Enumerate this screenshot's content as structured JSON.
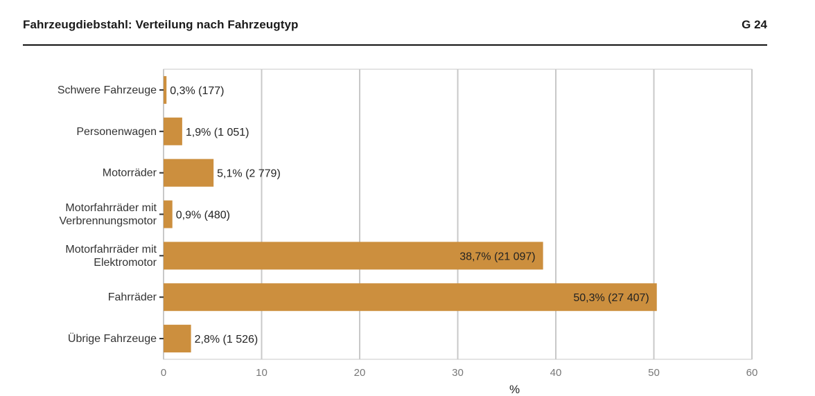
{
  "header": {
    "title": "Fahrzeugdiebstahl: Verteilung nach Fahrzeugtyp",
    "figure_number": "G 24"
  },
  "colors": {
    "bar": "#cc8f3e",
    "grid": "#c8c8c8"
  },
  "chart_data": {
    "type": "bar",
    "orientation": "horizontal",
    "title": "Fahrzeugdiebstahl: Verteilung nach Fahrzeugtyp",
    "xlabel": "%",
    "ylabel": "",
    "xlim": [
      0,
      60
    ],
    "xticks": [
      0,
      10,
      20,
      30,
      40,
      50,
      60
    ],
    "grid": true,
    "categories": [
      [
        "Schwere Fahrzeuge"
      ],
      [
        "Personenwagen"
      ],
      [
        "Motorräder"
      ],
      [
        "Motorfahrräder mit",
        "Verbrennungsmotor"
      ],
      [
        "Motorfahrräder mit",
        "Elektromotor"
      ],
      [
        "Fahrräder"
      ],
      [
        "Übrige Fahrzeuge"
      ]
    ],
    "values": [
      0.3,
      1.9,
      5.1,
      0.9,
      38.7,
      50.3,
      2.8
    ],
    "labels": [
      "0,3% (177)",
      "1,9% (1 051)",
      "5,1% (2 779)",
      "0,9% (480)",
      "38,7% (21 097)",
      "50,3% (27 407)",
      "2,8% (1 526)"
    ]
  }
}
